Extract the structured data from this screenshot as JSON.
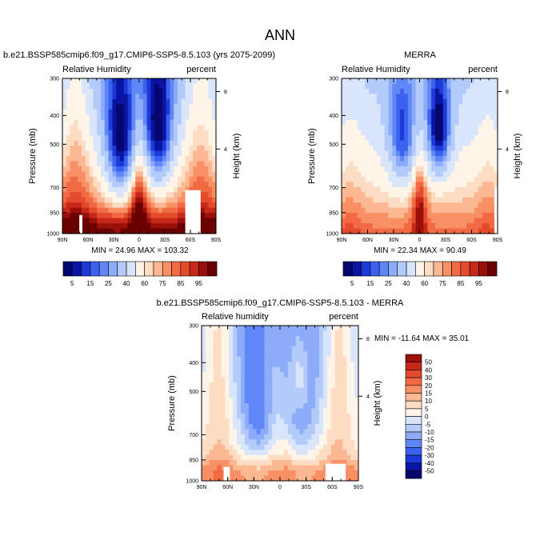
{
  "figure": {
    "title": "ANN",
    "colors": {
      "abs_scale": [
        "#06066f",
        "#0a14a3",
        "#1d3ad8",
        "#3b62ef",
        "#5f87f8",
        "#8cabf9",
        "#b3cbfa",
        "#d8e5fa",
        "#fff4e8",
        "#fddcc4",
        "#fcb892",
        "#f99065",
        "#f26a43",
        "#e44a2c",
        "#c7281a",
        "#9b1109",
        "#6b0000"
      ],
      "diff_scale": [
        "#06066f",
        "#0a14a3",
        "#1d3ad8",
        "#3b62ef",
        "#5f87f8",
        "#8cabf9",
        "#b3cbfa",
        "#d8e5fa",
        "#fff4e8",
        "#fddcc4",
        "#fcb892",
        "#f99065",
        "#f26a43",
        "#e44a2c",
        "#c7281a",
        "#9b1109"
      ],
      "missing": "#ffffff"
    }
  },
  "chart_data": [
    {
      "type": "heatmap",
      "title": "b.e21.BSSP585cmip6.f09_g17.CMIP6-SSP5-8.5.103 (yrs 2075-2099)",
      "left_label": "Relative Humidity",
      "right_label": "percent",
      "ylabel": "Pressure (mb)",
      "y2label": "Height (km)",
      "x_ticks": [
        "90N",
        "60N",
        "30N",
        "0",
        "30S",
        "60S",
        "90S"
      ],
      "y_ticks": [
        "300",
        "400",
        "500",
        "700",
        "850",
        "1000"
      ],
      "y2_ticks": [
        "8",
        "4"
      ],
      "ylim": [
        1000,
        300
      ],
      "stats": "MIN = 24.96  MAX = 103.32",
      "min": 24.96,
      "max": 103.32,
      "colorbar_levels": [
        "5",
        "15",
        "25",
        "40",
        "60",
        "75",
        "85",
        "95"
      ]
    },
    {
      "type": "heatmap",
      "title": "MERRA",
      "left_label": "Relative Humidity",
      "right_label": "percent",
      "ylabel": "Pressure (mb)",
      "y2label": "Height (km)",
      "x_ticks": [
        "90N",
        "60N",
        "30N",
        "0",
        "30S",
        "60S",
        "90S"
      ],
      "y_ticks": [
        "300",
        "400",
        "500",
        "700",
        "850",
        "1000"
      ],
      "y2_ticks": [
        "8",
        "4"
      ],
      "ylim": [
        1000,
        300
      ],
      "stats": "MIN = 22.34  MAX = 90.49",
      "min": 22.34,
      "max": 90.49,
      "colorbar_levels": [
        "5",
        "15",
        "25",
        "40",
        "60",
        "75",
        "85",
        "95"
      ]
    },
    {
      "type": "heatmap",
      "title": "b.e21.BSSP585cmip6.f09_g17.CMIP6-SSP5-8.5.103 - MERRA",
      "left_label": "Relative humidity",
      "right_label": "percent",
      "ylabel": "Pressure (mb)",
      "y2label": "Height (km)",
      "x_ticks": [
        "90N",
        "60N",
        "30N",
        "0",
        "30S",
        "60S",
        "90S"
      ],
      "y_ticks": [
        "300",
        "400",
        "500",
        "700",
        "850",
        "1000"
      ],
      "y2_ticks": [
        "8",
        "4"
      ],
      "ylim": [
        1000,
        300
      ],
      "stats": "MIN = -11.64  MAX = 35.01",
      "min": -11.64,
      "max": 35.01,
      "colorbar_levels": [
        "50",
        "40",
        "30",
        "20",
        "15",
        "10",
        "5",
        "0",
        "-5",
        "-10",
        "-15",
        "-20",
        "-30",
        "-40",
        "-50"
      ]
    }
  ]
}
